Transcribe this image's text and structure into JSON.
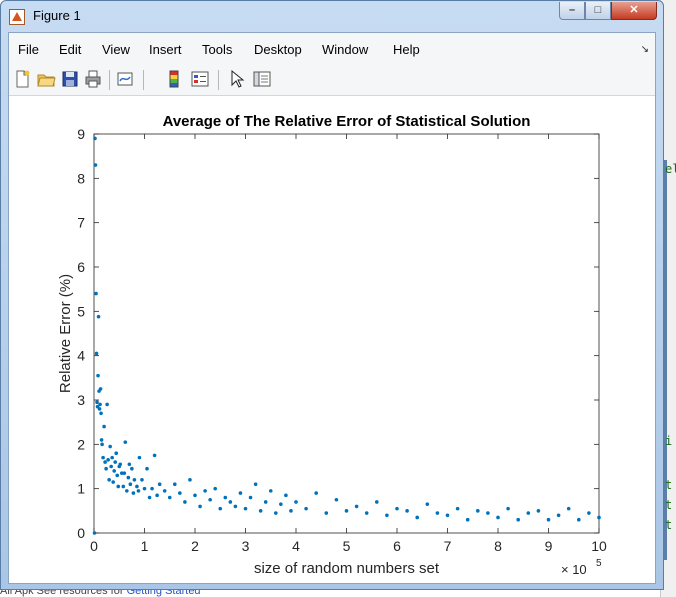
{
  "window": {
    "title": "Figure 1",
    "controls": {
      "minimize": "–",
      "maximize": "□",
      "close": "✕"
    }
  },
  "menubar": {
    "items": [
      "File",
      "Edit",
      "View",
      "Insert",
      "Tools",
      "Desktop",
      "Window",
      "Help"
    ],
    "overflow_arrow": "↘"
  },
  "toolbar": {
    "icons": [
      "new-figure-icon",
      "open-file-icon",
      "save-icon",
      "print-icon",
      "link-plot-icon",
      "colorbar-icon",
      "legend-icon",
      "pointer-icon",
      "property-editor-icon"
    ]
  },
  "background": {
    "bottom_text_a": "All Apk See resources for ",
    "bottom_text_link": "Getting Started",
    "right_fragments": [
      "el",
      "i",
      "t",
      "t",
      "t"
    ]
  },
  "chart_data": {
    "type": "scatter",
    "title": "Average of The Relative Error of Statistical Solution",
    "xlabel": "size of random numbers set",
    "ylabel": "Relative Error (%)",
    "x_exponent_label": "× 10",
    "x_exponent_power": "5",
    "xlim": [
      0,
      1000000
    ],
    "ylim": [
      0,
      9
    ],
    "xticks": [
      0,
      100000,
      200000,
      300000,
      400000,
      500000,
      600000,
      700000,
      800000,
      900000,
      1000000
    ],
    "xtick_labels": [
      "0",
      "1",
      "2",
      "3",
      "4",
      "5",
      "6",
      "7",
      "8",
      "9",
      "10"
    ],
    "yticks": [
      0,
      1,
      2,
      3,
      4,
      5,
      6,
      7,
      8,
      9
    ],
    "ytick_labels": [
      "0",
      "1",
      "2",
      "3",
      "4",
      "5",
      "6",
      "7",
      "8",
      "9"
    ],
    "grid": false,
    "marker_color": "#0072BD",
    "series": [
      {
        "x": [
          1000,
          2000,
          3000,
          4000,
          5000,
          6000,
          7000,
          8000,
          9000,
          10000,
          11000,
          12000,
          13000,
          14000,
          15000,
          16000,
          18000,
          20000,
          22000,
          24000,
          26000,
          28000,
          30000,
          32000,
          34000,
          36000,
          38000,
          40000,
          42000,
          44000,
          46000,
          48000,
          50000,
          52000,
          55000,
          58000,
          60000,
          62000,
          65000,
          68000,
          70000,
          72000,
          75000,
          78000,
          80000,
          85000,
          88000,
          90000,
          95000,
          100000,
          105000,
          110000,
          115000,
          120000,
          125000,
          130000,
          140000,
          150000,
          160000,
          170000,
          180000,
          190000,
          200000,
          210000,
          220000,
          230000,
          240000,
          250000,
          260000,
          270000,
          280000,
          290000,
          300000,
          310000,
          320000,
          330000,
          340000,
          350000,
          360000,
          370000,
          380000,
          390000,
          400000,
          420000,
          440000,
          460000,
          480000,
          500000,
          520000,
          540000,
          560000,
          580000,
          600000,
          620000,
          640000,
          660000,
          680000,
          700000,
          720000,
          740000,
          760000,
          780000,
          800000,
          820000,
          840000,
          860000,
          880000,
          900000,
          920000,
          940000,
          960000,
          980000,
          1000000
        ],
        "y": [
          0.0,
          8.9,
          8.3,
          5.4,
          4.05,
          2.95,
          2.85,
          3.55,
          4.88,
          3.2,
          2.8,
          2.9,
          3.25,
          2.7,
          2.1,
          2.0,
          1.7,
          2.4,
          1.6,
          1.45,
          2.9,
          1.65,
          1.2,
          1.95,
          1.5,
          1.7,
          1.15,
          1.4,
          1.6,
          1.8,
          1.3,
          1.05,
          1.5,
          1.55,
          1.35,
          1.05,
          1.35,
          2.05,
          0.95,
          1.25,
          1.55,
          1.1,
          1.45,
          0.9,
          1.2,
          1.05,
          0.95,
          1.7,
          1.2,
          1.0,
          1.45,
          0.8,
          1.0,
          1.75,
          0.85,
          1.1,
          0.95,
          0.8,
          1.1,
          0.9,
          0.7,
          1.2,
          0.85,
          0.6,
          0.95,
          0.75,
          1.0,
          0.55,
          0.8,
          0.7,
          0.6,
          0.9,
          0.55,
          0.8,
          1.1,
          0.5,
          0.7,
          0.95,
          0.45,
          0.65,
          0.85,
          0.5,
          0.7,
          0.55,
          0.9,
          0.45,
          0.75,
          0.5,
          0.6,
          0.45,
          0.7,
          0.4,
          0.55,
          0.5,
          0.35,
          0.65,
          0.45,
          0.4,
          0.55,
          0.3,
          0.5,
          0.45,
          0.35,
          0.55,
          0.3,
          0.45,
          0.5,
          0.3,
          0.4,
          0.55,
          0.3,
          0.45,
          0.35
        ]
      }
    ]
  }
}
